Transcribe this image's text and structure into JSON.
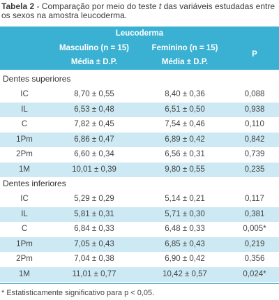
{
  "caption": {
    "label": "Tabela 2",
    "text_before": " - Comparação por meio do teste ",
    "t_symbol": "t",
    "text_after": " das variáveis estudadas entre os sexos na amostra leucoderma."
  },
  "header": {
    "group": "Leucoderma",
    "col_masc": "Masculino (n = 15)",
    "col_fem": "Feminino (n = 15)",
    "col_p": "P",
    "sub_masc": "Média ± D.P.",
    "sub_fem": "Média ± D.P."
  },
  "groups": [
    {
      "title": "Dentes superiores",
      "rows": [
        {
          "label": "IC",
          "masc": "8,70 ± 0,55",
          "fem": "8,40 ± 0,36",
          "p": "0,088"
        },
        {
          "label": "IL",
          "masc": "6,53 ± 0,48",
          "fem": "6,51 ± 0,50",
          "p": "0,938"
        },
        {
          "label": "C",
          "masc": "7,82 ± 0,45",
          "fem": "7,54 ± 0,46",
          "p": "0,110"
        },
        {
          "label": "1Pm",
          "masc": "6,86 ± 0,47",
          "fem": "6,89 ± 0,42",
          "p": "0,842"
        },
        {
          "label": "2Pm",
          "masc": "6,60 ± 0,34",
          "fem": "6,56 ± 0,31",
          "p": "0,739"
        },
        {
          "label": "1M",
          "masc": "10,01 ± 0,39",
          "fem": "9,80 ± 0,55",
          "p": "0,235"
        }
      ]
    },
    {
      "title": "Dentes inferiores",
      "rows": [
        {
          "label": "IC",
          "masc": "5,29 ± 0,29",
          "fem": "5,14 ± 0,21",
          "p": "0,117"
        },
        {
          "label": "IL",
          "masc": "5,81 ± 0,31",
          "fem": "5,71 ± 0,30",
          "p": "0,381"
        },
        {
          "label": "C",
          "masc": "6,84 ± 0,33",
          "fem": "6,48 ± 0,33",
          "p": "0,005*"
        },
        {
          "label": "1Pm",
          "masc": "7,05 ± 0,43",
          "fem": "6,85 ± 0,43",
          "p": "0,219"
        },
        {
          "label": "2Pm",
          "masc": "7,04 ± 0,38",
          "fem": "6,90 ± 0,42",
          "p": "0,356"
        },
        {
          "label": "1M",
          "masc": "11,01 ± 0,77",
          "fem": "10,42 ± 0,57",
          "p": "0,024*"
        }
      ]
    }
  ],
  "footnote": "* Estatisticamente significativo para p < 0,05.",
  "colors": {
    "header": "#3ab1d2",
    "shade": "#cdeaf4"
  }
}
